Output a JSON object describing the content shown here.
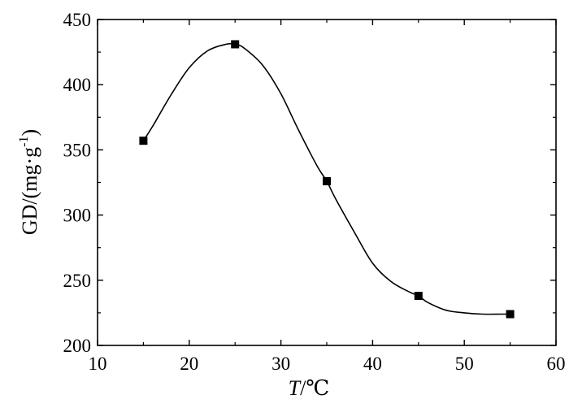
{
  "chart_data": {
    "type": "scatter",
    "xlabel_italic": "T",
    "xlabel_rest": "/℃",
    "ylabel_main": "GD/(mg·g",
    "ylabel_sup": "-1",
    "ylabel_close": ")",
    "xlim": [
      10,
      60
    ],
    "ylim": [
      200,
      450
    ],
    "xticks": [
      10,
      20,
      30,
      40,
      50,
      60
    ],
    "yticks": [
      200,
      250,
      300,
      350,
      400,
      450
    ],
    "grid": false,
    "marker": "square",
    "line_style": "smooth-fit",
    "series": [
      {
        "x": [
          15,
          25,
          35,
          45,
          55
        ],
        "y": [
          357,
          431,
          326,
          238,
          224
        ]
      }
    ],
    "fit_curve": {
      "x": [
        15,
        16,
        18,
        20,
        22,
        24,
        25,
        26,
        28,
        30,
        32,
        34,
        35,
        36,
        38,
        40,
        42,
        44,
        45,
        46,
        48,
        50,
        52,
        54,
        55
      ],
      "y": [
        357,
        368,
        392,
        413,
        426,
        431,
        431,
        428,
        415,
        393,
        364,
        337,
        326,
        312,
        287,
        263,
        249,
        241,
        238,
        233,
        227,
        225,
        224,
        224,
        224
      ]
    }
  }
}
